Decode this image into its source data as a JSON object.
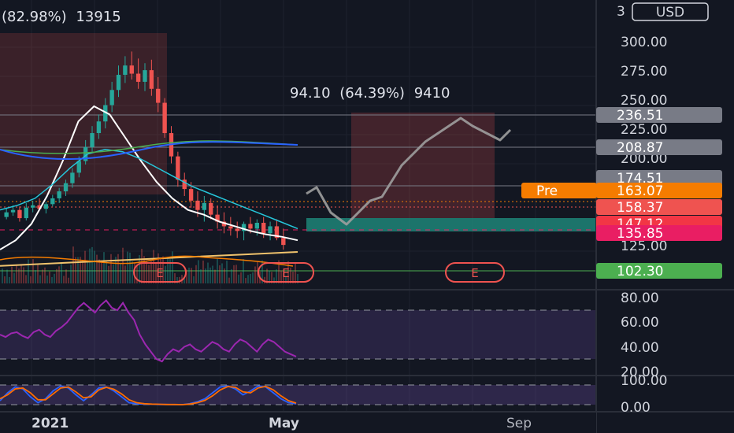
{
  "currency": "USD",
  "chart_data": [
    {
      "type": "candlestick",
      "title": "",
      "measure_left": {
        "percent": "(82.98%)",
        "ticks": "13915"
      },
      "measure_right": {
        "value": "94.10",
        "percent": "(64.39%)",
        "ticks": "9410"
      },
      "price_ticks": [
        "300.00",
        "275.00",
        "250.00",
        "225.00",
        "200.00",
        "125.00"
      ],
      "ylim": [
        105,
        330
      ],
      "x_ticks": [
        "2021",
        "May",
        "Sep"
      ],
      "price_badges": [
        {
          "value": "236.51",
          "color": "#787b86"
        },
        {
          "value": "208.87",
          "color": "#787b86"
        },
        {
          "value": "174.51",
          "color": "#787b86"
        },
        {
          "value": "163.07",
          "color": "#f57c00"
        },
        {
          "value": "158.37",
          "color": "#ef5350"
        },
        {
          "value": "147.12",
          "color": "#f23645"
        },
        {
          "value": "135.85",
          "color": "#e91e63"
        },
        {
          "value": "102.30",
          "color": "#4caf50"
        }
      ],
      "premarket_label": "Pre",
      "earnings_markers": [
        "E",
        "E",
        "E"
      ],
      "colors": {
        "up": "#ef5350",
        "down": "#26a69a",
        "ma_fast": "#ffffff",
        "ma_mid": "#26c6da",
        "ma_green": "#4caf50",
        "ma_blue": "#2962ff",
        "ma_long": "#f0c36d",
        "projection": "#9e9e9e"
      },
      "series": [
        {
          "name": "",
          "values": [
            [
              180,
              188,
              178,
              184
            ],
            [
              184,
              190,
              181,
              186
            ],
            [
              186,
              189,
              176,
              179
            ],
            [
              179,
              192,
              177,
              188
            ],
            [
              188,
              194,
              184,
              190
            ],
            [
              190,
              196,
              186,
              187
            ],
            [
              187,
              193,
              183,
              191
            ],
            [
              191,
              199,
              189,
              196
            ],
            [
              196,
              205,
              192,
              202
            ],
            [
              202,
              212,
              198,
              209
            ],
            [
              209,
              222,
              205,
              218
            ],
            [
              218,
              232,
              214,
              228
            ],
            [
              228,
              246,
              225,
              240
            ],
            [
              240,
              258,
              236,
              252
            ],
            [
              252,
              268,
              247,
              262
            ],
            [
              262,
              282,
              256,
              276
            ],
            [
              276,
              296,
              270,
              289
            ],
            [
              289,
              310,
              283,
              302
            ],
            [
              302,
              318,
              295,
              310
            ],
            [
              310,
              322,
              298,
              303
            ],
            [
              303,
              316,
              290,
              296
            ],
            [
              296,
              312,
              288,
              306
            ],
            [
              306,
              315,
              284,
              290
            ],
            [
              290,
              300,
              270,
              278
            ],
            [
              278,
              282,
              248,
              252
            ],
            [
              252,
              258,
              226,
              232
            ],
            [
              232,
              236,
              206,
              212
            ],
            [
              212,
              218,
              198,
              204
            ],
            [
              204,
              210,
              188,
              194
            ],
            [
              194,
              202,
              180,
              186
            ],
            [
              186,
              198,
              176,
              192
            ],
            [
              192,
              196,
              178,
              182
            ],
            [
              182,
              190,
              170,
              176
            ],
            [
              176,
              184,
              166,
              172
            ],
            [
              172,
              180,
              164,
              170
            ],
            [
              170,
              176,
              162,
              168
            ],
            [
              168,
              176,
              160,
              174
            ],
            [
              174,
              180,
              166,
              170
            ],
            [
              170,
              178,
              164,
              175
            ],
            [
              175,
              180,
              162,
              166
            ],
            [
              166,
              176,
              160,
              172
            ],
            [
              172,
              178,
              160,
              162
            ],
            [
              162,
              170,
              152,
              156
            ]
          ]
        },
        {
          "name": "",
          "values": [
            152,
            160,
            174,
            198,
            228,
            262,
            275,
            268,
            248,
            228,
            210,
            196,
            186,
            182,
            176,
            172,
            168,
            165,
            163,
            160
          ]
        },
        {
          "name": "",
          "values": [
            186,
            190,
            196,
            208,
            222,
            234,
            238,
            236,
            230,
            222,
            214,
            206,
            200,
            194,
            188,
            182,
            176,
            170
          ]
        },
        {
          "name": "",
          "values": [
            138,
            140,
            142,
            144,
            146,
            148,
            150
          ]
        },
        {
          "name": "",
          "values": [
            163,
            158,
            168,
            150,
            144,
            160,
            170,
            178,
            190,
            204,
            216,
            226,
            230,
            222,
            218,
            214
          ]
        }
      ],
      "projection": [
        [
          389,
          246
        ],
        [
          402,
          238
        ],
        [
          420,
          270
        ],
        [
          440,
          285
        ],
        [
          470,
          255
        ],
        [
          485,
          250
        ],
        [
          510,
          210
        ],
        [
          540,
          180
        ],
        [
          585,
          150
        ],
        [
          600,
          160
        ],
        [
          635,
          178
        ],
        [
          648,
          165
        ]
      ]
    },
    {
      "type": "line",
      "title": "",
      "ylim": [
        10,
        90
      ],
      "ticks": [
        "80.00",
        "60.00",
        "40.00",
        "20.00"
      ],
      "bands": [
        30,
        70
      ],
      "values": [
        50,
        48,
        51,
        52,
        49,
        47,
        52,
        54,
        50,
        48,
        53,
        56,
        60,
        66,
        72,
        76,
        72,
        68,
        74,
        78,
        72,
        70,
        76,
        68,
        62,
        50,
        42,
        36,
        30,
        28,
        34,
        38,
        36,
        40,
        42,
        38,
        36,
        40,
        44,
        42,
        38,
        36,
        42,
        46,
        44,
        40,
        36,
        42,
        46,
        44,
        40,
        36,
        34,
        32
      ]
    },
    {
      "type": "line",
      "title": "",
      "ylim": [
        -5,
        110
      ],
      "ticks": [
        "100.00",
        "0.00"
      ],
      "series": [
        {
          "name": "",
          "values": [
            20,
            60,
            90,
            80,
            40,
            10,
            30,
            70,
            95,
            85,
            50,
            20,
            50,
            85,
            90,
            70,
            40,
            10,
            5,
            3,
            2,
            1,
            1,
            0,
            0,
            5,
            15,
            30,
            60,
            90,
            95,
            80,
            50,
            70,
            95,
            90,
            60,
            30,
            10,
            5
          ]
        },
        {
          "name": "",
          "values": [
            30,
            50,
            80,
            85,
            60,
            25,
            25,
            55,
            85,
            90,
            65,
            35,
            40,
            75,
            88,
            78,
            55,
            25,
            10,
            5,
            3,
            2,
            1,
            1,
            0,
            3,
            10,
            22,
            45,
            75,
            92,
            88,
            65,
            60,
            85,
            93,
            75,
            45,
            20,
            8
          ]
        }
      ]
    }
  ]
}
